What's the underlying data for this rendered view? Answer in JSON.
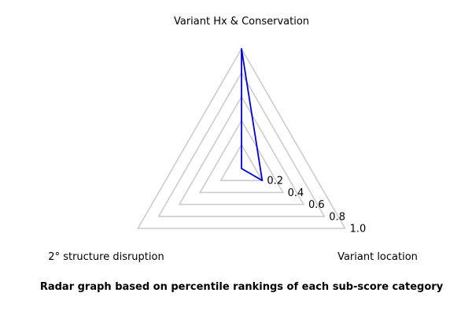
{
  "chart_data": {
    "type": "radar",
    "axes": [
      "Variant Hx & Conservation",
      "Variant location",
      "2° structure disruption"
    ],
    "series": [
      {
        "values": [
          1.0,
          0.2,
          0.0
        ],
        "color": "#0000dd"
      }
    ],
    "rlim": [
      0,
      1.0
    ],
    "rticks": [
      0.2,
      0.4,
      0.6,
      0.8,
      1.0
    ],
    "rtick_labels": [
      "0.2",
      "0.4",
      "0.6",
      "0.8",
      "1.0"
    ],
    "grid": true,
    "grid_color": "#cccccc"
  },
  "caption": "Radar graph based on percentile rankings of each sub-score category"
}
